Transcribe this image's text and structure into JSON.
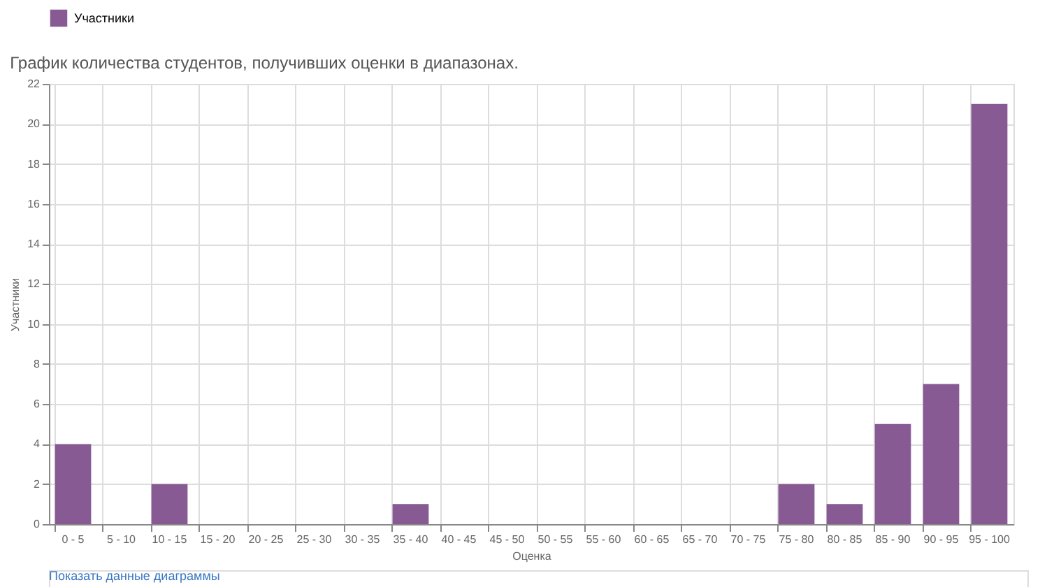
{
  "chart_data": {
    "type": "bar",
    "title": "График количества студентов, получивших оценки в диапазонах.",
    "categories": [
      "0 - 5",
      "5 - 10",
      "10 - 15",
      "15 - 20",
      "20 - 25",
      "25 - 30",
      "30 - 35",
      "35 - 40",
      "40 - 45",
      "45 - 50",
      "50 - 55",
      "55 - 60",
      "60 - 65",
      "65 - 70",
      "70 - 75",
      "75 - 80",
      "80 - 85",
      "85 - 90",
      "90 - 95",
      "95 - 100"
    ],
    "series": [
      {
        "name": "Участники",
        "color": "#875a94",
        "values": [
          4,
          0,
          2,
          0,
          0,
          0,
          0,
          1,
          0,
          0,
          0,
          0,
          0,
          0,
          0,
          2,
          1,
          5,
          7,
          21
        ]
      }
    ],
    "xlabel": "Оценка",
    "ylabel": "Участники",
    "ylim": [
      0,
      22
    ],
    "yticks": [
      0,
      2,
      4,
      6,
      8,
      10,
      12,
      14,
      16,
      18,
      20,
      22
    ],
    "grid": true,
    "legend": "top",
    "annotations": [
      "Показать данные диаграммы"
    ]
  }
}
